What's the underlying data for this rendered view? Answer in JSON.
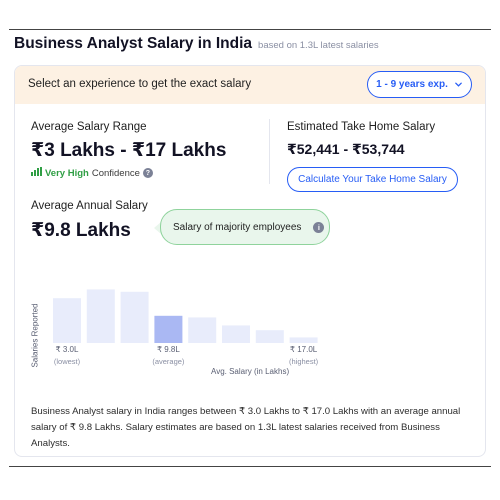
{
  "header": {
    "title": "Business Analyst Salary in India",
    "subtitle": "based on 1.3L latest salaries"
  },
  "banner": {
    "prompt": "Select an experience to get the exact salary",
    "experience_selected": "1 - 9 years exp."
  },
  "range": {
    "label": "Average Salary Range",
    "value": "₹3 Lakhs - ₹17 Lakhs",
    "confidence_strong": "Very High",
    "confidence_rest": "Confidence"
  },
  "take_home": {
    "label": "Estimated Take Home Salary",
    "value": "₹52,441 - ₹53,744",
    "button_label": "Calculate Your Take Home Salary"
  },
  "annual": {
    "label": "Average Annual Salary",
    "value": "₹9.8 Lakhs"
  },
  "tooltip": {
    "text": "Salary of majority employees"
  },
  "icons": {
    "confidence": "signal-bars-icon",
    "info": "info-icon",
    "dropdown": "chevron-down-icon"
  },
  "colors": {
    "accent": "#275df5",
    "bar": "#e8ecfb",
    "bar_highlight": "#aab8f3",
    "confidence": "#2f9e44",
    "banner_bg": "#fdf1e3",
    "tooltip_bg": "#e9f6ec"
  },
  "chart_data": {
    "type": "bar",
    "ylabel": "Salaries Reported",
    "xlabel": "Avg. Salary (in Lakhs)",
    "values": [
      56,
      67,
      64,
      34,
      32,
      22,
      16,
      7
    ],
    "highlight_index": 3,
    "ylim": [
      0,
      100
    ],
    "ticks": [
      {
        "bar_index": 0,
        "label": "₹ 3.0L",
        "sub": "(lowest)"
      },
      {
        "bar_index": 3,
        "label": "₹ 9.8L",
        "sub": "(average)"
      },
      {
        "bar_index": 7,
        "label": "₹ 17.0L",
        "sub": "(highest)"
      }
    ]
  },
  "description": "Business Analyst salary in India ranges between ₹ 3.0 Lakhs to ₹ 17.0 Lakhs with an average annual salary of ₹ 9.8 Lakhs. Salary estimates are based on 1.3L latest salaries received from Business Analysts."
}
